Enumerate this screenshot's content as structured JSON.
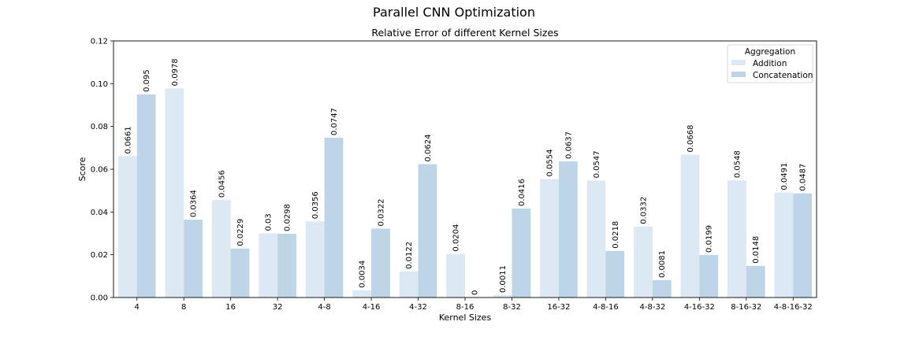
{
  "figure_title": "Parallel CNN Optimization",
  "chart_data": {
    "type": "bar",
    "title": "Relative Error of different Kernel Sizes",
    "xlabel": "Kernel Sizes",
    "ylabel": "Score",
    "ylim": [
      0,
      0.12
    ],
    "yticks": [
      "0.00",
      "0.02",
      "0.04",
      "0.06",
      "0.08",
      "0.10",
      "0.12"
    ],
    "categories": [
      "4",
      "8",
      "16",
      "32",
      "4-8",
      "4-16",
      "4-32",
      "8-16",
      "8-32",
      "16-32",
      "4-8-16",
      "4-8-32",
      "4-16-32",
      "8-16-32",
      "4-8-16-32"
    ],
    "series": [
      {
        "name": "Addition",
        "color": "#dce8f4",
        "values": [
          0.0661,
          0.0978,
          0.0456,
          0.03,
          0.0356,
          0.0034,
          0.0122,
          0.0204,
          0.0011,
          0.0554,
          0.0547,
          0.0332,
          0.0668,
          0.0548,
          0.0491
        ],
        "labels": [
          "0.0661",
          "0.0978",
          "0.0456",
          "0.03",
          "0.0356",
          "0.0034",
          "0.0122",
          "0.0204",
          "0.0011",
          "0.0554",
          "0.0547",
          "0.0332",
          "0.0668",
          "0.0548",
          "0.0491"
        ]
      },
      {
        "name": "Concatenation",
        "color": "#bed5e7",
        "values": [
          0.095,
          0.0364,
          0.0229,
          0.0298,
          0.0747,
          0.0322,
          0.0624,
          0.0,
          0.0416,
          0.0637,
          0.0218,
          0.0081,
          0.0199,
          0.0148,
          0.0487
        ],
        "labels": [
          "0.095",
          "0.0364",
          "0.0229",
          "0.0298",
          "0.0747",
          "0.0322",
          "0.0624",
          "0",
          "0.0416",
          "0.0637",
          "0.0218",
          "0.0081",
          "0.0199",
          "0.0148",
          "0.0487"
        ]
      }
    ],
    "legend": {
      "title": "Aggregation",
      "position": "top-right"
    },
    "grid": false
  }
}
